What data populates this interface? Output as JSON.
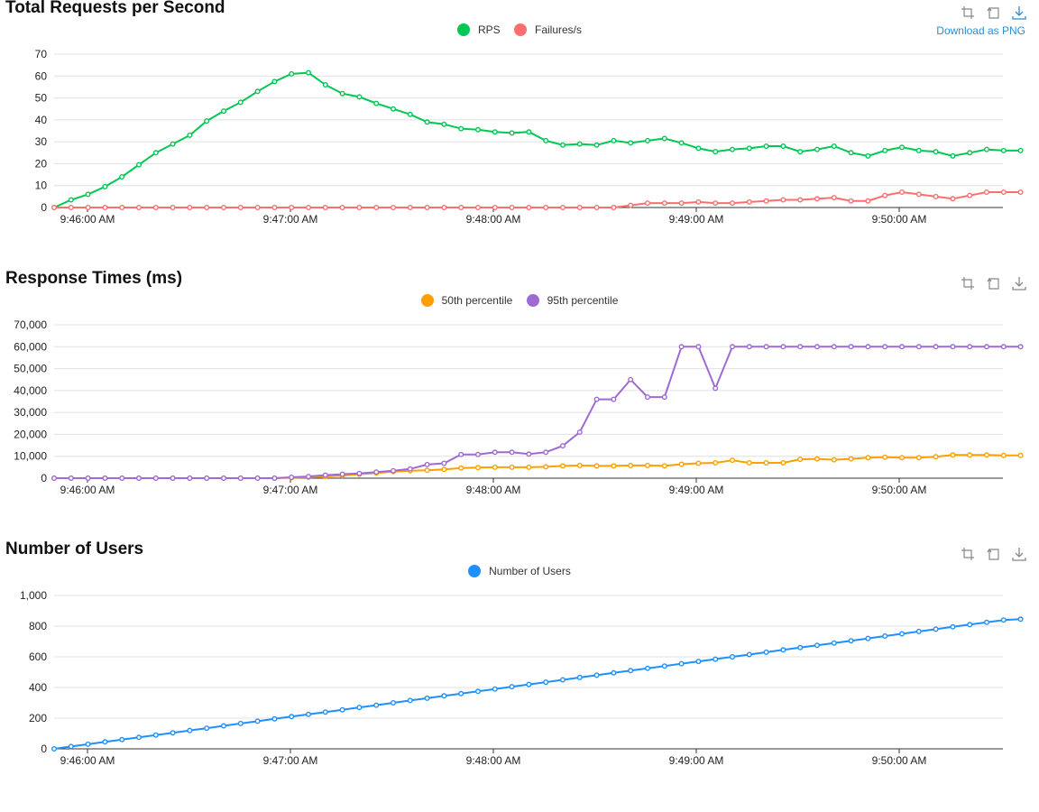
{
  "toolbox": {
    "download_label": "Download as PNG",
    "icons": [
      "zoom-icon",
      "restore-icon",
      "download-icon"
    ]
  },
  "x_ticks": [
    "9:46:00 AM",
    "9:47:00 AM",
    "9:48:00 AM",
    "9:49:00 AM",
    "9:50:00 AM"
  ],
  "chart_data": [
    {
      "type": "line",
      "title": "Total Requests per Second",
      "ylim": [
        0,
        70
      ],
      "y_ticks": [
        0,
        10,
        20,
        30,
        40,
        50,
        60,
        70
      ],
      "y_tick_labels": [
        "0",
        "10",
        "20",
        "30",
        "40",
        "50",
        "60",
        "70"
      ],
      "x_ticks": [
        "9:46:00 AM",
        "9:47:00 AM",
        "9:48:00 AM",
        "9:49:00 AM",
        "9:50:00 AM"
      ],
      "grid": true,
      "legend": "top-center",
      "series": [
        {
          "name": "RPS",
          "color": "#00c853",
          "values": [
            0,
            3.5,
            6,
            9.5,
            14,
            19.5,
            25,
            29,
            33,
            39.5,
            44,
            48,
            53,
            57.5,
            61,
            61.5,
            56,
            52,
            50.5,
            47.5,
            45,
            42.5,
            39,
            38,
            36,
            35.5,
            34.5,
            34,
            34.5,
            30.5,
            28.5,
            29,
            28.5,
            30.5,
            29.5,
            30.5,
            31.5,
            29.5,
            27,
            25.5,
            26.5,
            27,
            28,
            28,
            25.5,
            26.5,
            28,
            25,
            23.5,
            26,
            27.5,
            26,
            25.5,
            23.5,
            25,
            26.5,
            26,
            26
          ]
        },
        {
          "name": "Failures/s",
          "color": "#ff6e6e",
          "values": [
            0,
            0,
            0,
            0,
            0,
            0,
            0,
            0,
            0,
            0,
            0,
            0,
            0,
            0,
            0,
            0,
            0,
            0,
            0,
            0,
            0,
            0,
            0,
            0,
            0,
            0,
            0,
            0,
            0,
            0,
            0,
            0,
            0,
            0,
            1,
            2,
            2,
            2,
            2.5,
            2,
            2,
            2.5,
            3,
            3.5,
            3.5,
            4,
            4.5,
            3,
            3,
            5.5,
            7,
            6,
            5,
            4,
            5.5,
            7,
            7,
            7
          ]
        }
      ]
    },
    {
      "type": "line",
      "title": "Response Times (ms)",
      "ylim": [
        0,
        70000
      ],
      "y_ticks": [
        0,
        10000,
        20000,
        30000,
        40000,
        50000,
        60000,
        70000
      ],
      "y_tick_labels": [
        "0",
        "10,000",
        "20,000",
        "30,000",
        "40,000",
        "50,000",
        "60,000",
        "70,000"
      ],
      "x_ticks": [
        "9:46:00 AM",
        "9:47:00 AM",
        "9:48:00 AM",
        "9:49:00 AM",
        "9:50:00 AM"
      ],
      "grid": true,
      "legend": "top-center",
      "series": [
        {
          "name": "50th percentile",
          "color": "#ff9f00",
          "values": [
            0,
            0,
            0,
            0,
            0,
            0,
            0,
            0,
            0,
            0,
            0,
            0,
            0,
            0,
            200,
            400,
            800,
            1200,
            1800,
            2400,
            3000,
            3400,
            3600,
            4000,
            4600,
            4800,
            5000,
            5000,
            5000,
            5200,
            5600,
            5800,
            5600,
            5600,
            5800,
            5800,
            5600,
            6400,
            6800,
            7000,
            8200,
            7000,
            7000,
            7000,
            8600,
            8800,
            8400,
            8800,
            9400,
            9600,
            9400,
            9400,
            9800,
            10600,
            10600,
            10600,
            10400,
            10400
          ]
        },
        {
          "name": "95th percentile",
          "color": "#9f6ad4",
          "values": [
            0,
            0,
            0,
            0,
            0,
            0,
            0,
            0,
            0,
            0,
            0,
            0,
            0,
            0,
            400,
            800,
            1400,
            1800,
            2200,
            2800,
            3400,
            4200,
            6200,
            6800,
            10800,
            10800,
            11800,
            11800,
            11000,
            11800,
            14800,
            21000,
            36000,
            36000,
            45000,
            37000,
            37000,
            60000,
            60000,
            41000,
            60000,
            60000,
            60000,
            60000,
            60000,
            60000,
            60000,
            60000,
            60000,
            60000,
            60000,
            60000,
            60000,
            60000,
            60000,
            60000,
            60000,
            60000
          ]
        }
      ]
    },
    {
      "type": "line",
      "title": "Number of Users",
      "ylim": [
        0,
        1000
      ],
      "y_ticks": [
        0,
        200,
        400,
        600,
        800,
        1000
      ],
      "y_tick_labels": [
        "0",
        "200",
        "400",
        "600",
        "800",
        "1,000"
      ],
      "x_ticks": [
        "9:46:00 AM",
        "9:47:00 AM",
        "9:48:00 AM",
        "9:49:00 AM",
        "9:50:00 AM"
      ],
      "grid": true,
      "legend": "top-center",
      "series": [
        {
          "name": "Number of Users",
          "color": "#1e90ff",
          "values": [
            0,
            15,
            30,
            45,
            60,
            75,
            90,
            105,
            120,
            135,
            150,
            165,
            180,
            195,
            210,
            225,
            240,
            255,
            270,
            285,
            300,
            315,
            330,
            345,
            360,
            375,
            390,
            405,
            420,
            435,
            450,
            465,
            480,
            495,
            510,
            525,
            540,
            555,
            570,
            585,
            600,
            615,
            630,
            645,
            660,
            675,
            690,
            705,
            720,
            735,
            750,
            765,
            780,
            795,
            810,
            825,
            840,
            845
          ]
        }
      ]
    }
  ]
}
